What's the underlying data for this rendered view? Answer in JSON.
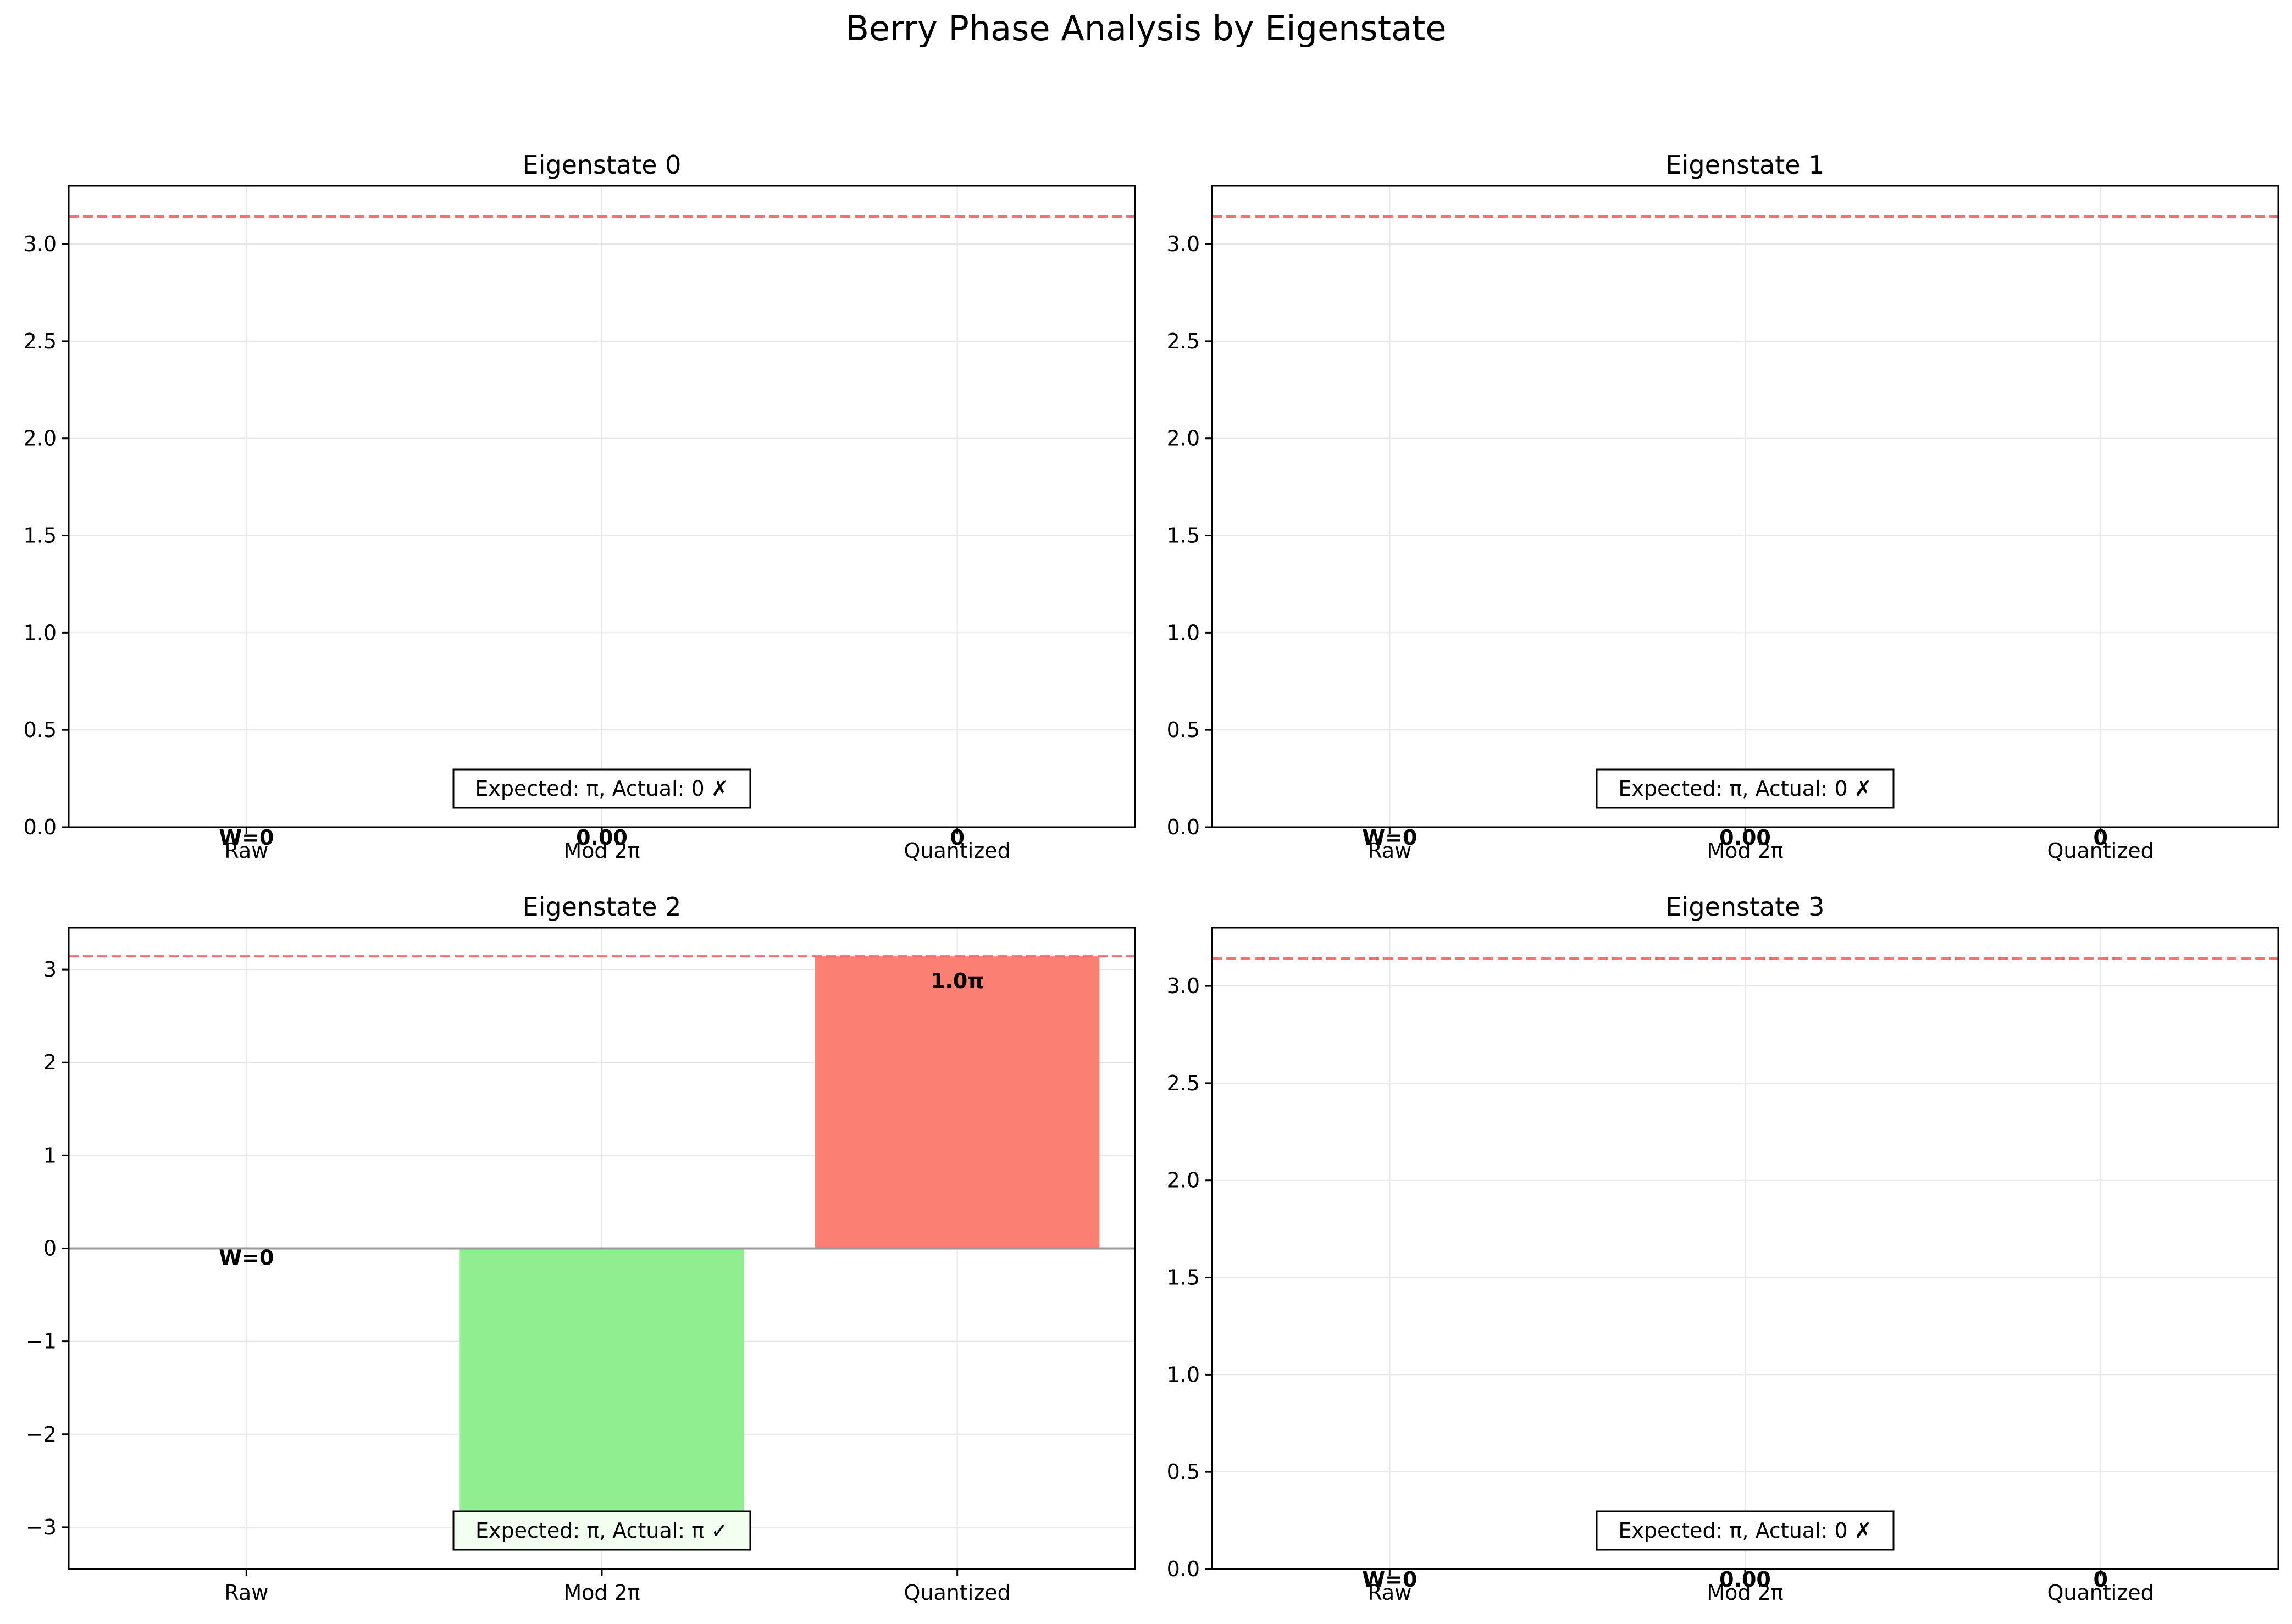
{
  "figure": {
    "suptitle": "Berry Phase Analysis by Eigenstate"
  },
  "colors": {
    "zero_line": "#999999",
    "reference_line": "#ff6f6f",
    "raw": "#87ceeb",
    "mod2pi": "#90ee90",
    "quantized": "#fa8072",
    "grid": "#e6e6e6"
  },
  "reference_line_value": 3.14159,
  "chart_data": [
    {
      "type": "bar",
      "title": "Eigenstate 0",
      "categories": [
        "Raw",
        "Mod 2π",
        "Quantized"
      ],
      "values": [
        0,
        0,
        0
      ],
      "bar_labels": [
        "W=0",
        "0.00",
        "0"
      ],
      "ylim": [
        0,
        3.3
      ],
      "yticks": [
        0,
        0.5,
        1,
        1.5,
        2,
        2.5,
        3
      ],
      "ytick_labels": [
        "0.0",
        "0.5",
        "1.0",
        "1.5",
        "2.0",
        "2.5",
        "3.0"
      ],
      "annotation": "Expected: π, Actual: 0 ✗",
      "annotation_bg": "#ffffff",
      "grid": true
    },
    {
      "type": "bar",
      "title": "Eigenstate 1",
      "categories": [
        "Raw",
        "Mod 2π",
        "Quantized"
      ],
      "values": [
        0,
        0,
        0
      ],
      "bar_labels": [
        "W=0",
        "0.00",
        "0"
      ],
      "ylim": [
        0,
        3.3
      ],
      "yticks": [
        0,
        0.5,
        1,
        1.5,
        2,
        2.5,
        3
      ],
      "ytick_labels": [
        "0.0",
        "0.5",
        "1.0",
        "1.5",
        "2.0",
        "2.5",
        "3.0"
      ],
      "annotation": "Expected: π, Actual: 0 ✗",
      "annotation_bg": "#ffffff",
      "grid": true
    },
    {
      "type": "bar",
      "title": "Eigenstate 2",
      "categories": [
        "Raw",
        "Mod 2π",
        "Quantized"
      ],
      "values": [
        0,
        -3.14,
        3.14159
      ],
      "bar_labels": [
        "W=0",
        "-3.14",
        "1.0π"
      ],
      "ylim": [
        -3.45,
        3.45
      ],
      "yticks": [
        -3,
        -2,
        -1,
        0,
        1,
        2,
        3
      ],
      "ytick_labels": [
        "−3",
        "−2",
        "−1",
        "0",
        "1",
        "2",
        "3"
      ],
      "annotation": "Expected: π, Actual: π ✓",
      "annotation_bg": "#f0fff0",
      "grid": true
    },
    {
      "type": "bar",
      "title": "Eigenstate 3",
      "categories": [
        "Raw",
        "Mod 2π",
        "Quantized"
      ],
      "values": [
        0,
        0,
        0
      ],
      "bar_labels": [
        "W=0",
        "0.00",
        "0"
      ],
      "ylim": [
        0,
        3.3
      ],
      "yticks": [
        0,
        0.5,
        1,
        1.5,
        2,
        2.5,
        3
      ],
      "ytick_labels": [
        "0.0",
        "0.5",
        "1.0",
        "1.5",
        "2.0",
        "2.5",
        "3.0"
      ],
      "annotation": "Expected: π, Actual: 0 ✗",
      "annotation_bg": "#ffffff",
      "grid": true
    }
  ]
}
